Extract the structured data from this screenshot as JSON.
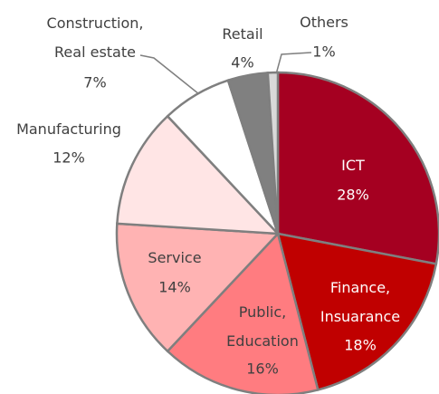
{
  "chart_data": {
    "type": "pie",
    "categories": [
      "ICT",
      "Finance,\nInsuarance",
      "Public,\nEducation",
      "Service",
      "Manufacturing",
      "Construction,\nReal estate",
      "Retail",
      "Others"
    ],
    "values": [
      28,
      18,
      16,
      14,
      12,
      7,
      4,
      1
    ],
    "value_labels": [
      "28%",
      "18%",
      "16%",
      "14%",
      "12%",
      "7%",
      "4%",
      "1%"
    ],
    "colors": [
      "#a50021",
      "#c00000",
      "#ff7c80",
      "#ffb3b3",
      "#ffe5e5",
      "#ffffff",
      "#808080",
      "#d9d9d9"
    ]
  }
}
